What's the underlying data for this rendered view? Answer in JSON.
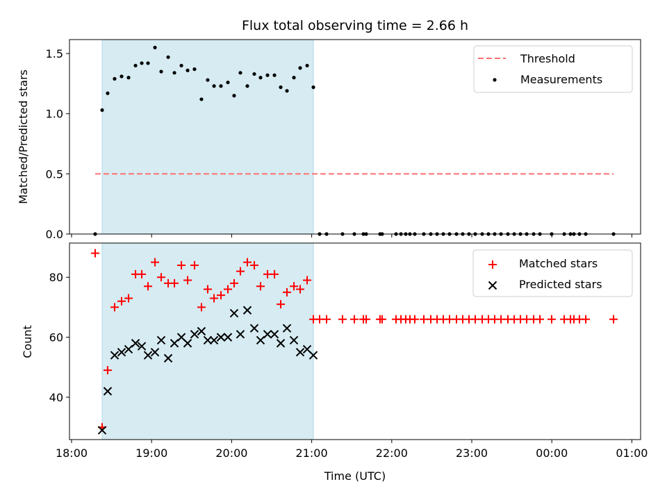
{
  "chart_data": {
    "type": "scatter",
    "title": "Flux total observing time = 2.66 h",
    "xlabel": "Time (UTC)",
    "x_units": "hours since 00:00 of first day (values above 24 are next day)",
    "xlim": [
      17.974,
      25.109
    ],
    "x_ticks": [
      18,
      19,
      20,
      21,
      22,
      23,
      24,
      25
    ],
    "x_tick_labels": [
      "18:00",
      "19:00",
      "20:00",
      "21:00",
      "22:00",
      "23:00",
      "00:00",
      "01:00"
    ],
    "shaded_interval": [
      18.382,
      21.021
    ],
    "shade_color": "#add8e6",
    "panels": [
      {
        "ylabel": "Matched/Predicted stars",
        "ylim": [
          0,
          1.616
        ],
        "y_ticks": [
          0.0,
          0.5,
          1.0,
          1.5
        ],
        "y_tick_labels": [
          "0.0",
          "0.5",
          "1.0",
          "1.5"
        ],
        "legend": {
          "placement": "upper-right",
          "entries": [
            "Threshold",
            "Measurements"
          ]
        },
        "threshold": {
          "name": "Threshold",
          "y": 0.5,
          "x": [
            18.295,
            24.771
          ],
          "color": "#ff7070"
        },
        "measurements": {
          "name": "Measurements",
          "color": "#000000",
          "x": [
            18.295,
            18.382,
            18.451,
            18.538,
            18.625,
            18.712,
            18.799,
            18.877,
            18.955,
            19.042,
            19.12,
            19.207,
            19.285,
            19.372,
            19.45,
            19.536,
            19.623,
            19.701,
            19.78,
            19.866,
            19.953,
            20.031,
            20.109,
            20.196,
            20.283,
            20.361,
            20.448,
            20.535,
            20.613,
            20.691,
            20.778,
            20.856,
            20.943,
            21.021,
            21.099,
            21.186,
            21.385,
            21.533,
            21.646,
            21.681,
            21.854,
            21.88,
            22.054,
            22.115,
            22.175,
            22.227,
            22.288,
            22.401,
            22.488,
            22.566,
            22.644,
            22.722,
            22.809,
            22.887,
            22.965,
            23.043,
            23.13,
            23.208,
            23.286,
            23.365,
            23.451,
            23.53,
            23.608,
            23.686,
            23.773,
            23.851,
            23.998,
            24.155,
            24.233,
            24.276,
            24.345,
            24.424,
            24.771
          ],
          "y": [
            0,
            1.03,
            1.17,
            1.29,
            1.31,
            1.3,
            1.4,
            1.42,
            1.42,
            1.55,
            1.35,
            1.47,
            1.34,
            1.4,
            1.36,
            1.37,
            1.12,
            1.28,
            1.23,
            1.23,
            1.26,
            1.15,
            1.34,
            1.23,
            1.33,
            1.3,
            1.32,
            1.32,
            1.22,
            1.19,
            1.3,
            1.38,
            1.4,
            1.22,
            0,
            0,
            0,
            0,
            0,
            0,
            0,
            0,
            0,
            0,
            0,
            0,
            0,
            0,
            0,
            0,
            0,
            0,
            0,
            0,
            0,
            0,
            0,
            0,
            0,
            0,
            0,
            0,
            0,
            0,
            0,
            0,
            0,
            0,
            0,
            0,
            0,
            0,
            0
          ]
        }
      },
      {
        "ylabel": "Count",
        "ylim": [
          25.88,
          91.4
        ],
        "y_ticks": [
          40,
          60,
          80
        ],
        "y_tick_labels": [
          "40",
          "60",
          "80"
        ],
        "legend": {
          "placement": "upper-right",
          "entries": [
            "Matched stars",
            "Predicted stars"
          ]
        },
        "matched": {
          "name": "Matched stars",
          "color": "#ff0000",
          "x": [
            18.295,
            18.382,
            18.451,
            18.538,
            18.625,
            18.712,
            18.799,
            18.877,
            18.955,
            19.042,
            19.12,
            19.207,
            19.285,
            19.372,
            19.45,
            19.536,
            19.623,
            19.701,
            19.78,
            19.866,
            19.953,
            20.031,
            20.109,
            20.196,
            20.283,
            20.361,
            20.448,
            20.535,
            20.613,
            20.691,
            20.778,
            20.856,
            20.943,
            21.021,
            21.099,
            21.186,
            21.385,
            21.533,
            21.646,
            21.681,
            21.854,
            21.88,
            22.054,
            22.115,
            22.175,
            22.227,
            22.288,
            22.401,
            22.488,
            22.566,
            22.644,
            22.722,
            22.809,
            22.887,
            22.965,
            23.043,
            23.13,
            23.208,
            23.286,
            23.365,
            23.451,
            23.53,
            23.608,
            23.686,
            23.773,
            23.851,
            23.998,
            24.155,
            24.233,
            24.276,
            24.345,
            24.424,
            24.771
          ],
          "y": [
            88,
            30,
            49,
            70,
            72,
            73,
            81,
            81,
            77,
            85,
            80,
            78,
            78,
            84,
            79,
            84,
            70,
            76,
            73,
            74,
            76,
            78,
            82,
            85,
            84,
            77,
            81,
            81,
            71,
            75,
            77,
            76,
            79,
            66,
            66,
            66,
            66,
            66,
            66,
            66,
            66,
            66,
            66,
            66,
            66,
            66,
            66,
            66,
            66,
            66,
            66,
            66,
            66,
            66,
            66,
            66,
            66,
            66,
            66,
            66,
            66,
            66,
            66,
            66,
            66,
            66,
            66,
            66,
            66,
            66,
            66,
            66,
            66
          ]
        },
        "predicted": {
          "name": "Predicted stars",
          "color": "#000000",
          "x": [
            18.382,
            18.451,
            18.538,
            18.625,
            18.712,
            18.799,
            18.877,
            18.955,
            19.042,
            19.12,
            19.207,
            19.285,
            19.372,
            19.45,
            19.536,
            19.623,
            19.701,
            19.78,
            19.866,
            19.953,
            20.031,
            20.109,
            20.196,
            20.283,
            20.361,
            20.448,
            20.535,
            20.613,
            20.691,
            20.778,
            20.856,
            20.943,
            21.021
          ],
          "y": [
            29,
            42,
            54,
            55,
            56,
            58,
            57,
            54,
            55,
            59,
            53,
            58,
            60,
            58,
            61,
            62,
            59,
            59,
            60,
            60,
            68,
            61,
            69,
            63,
            59,
            61,
            61,
            58,
            63,
            59,
            55,
            56,
            54
          ]
        }
      }
    ]
  }
}
